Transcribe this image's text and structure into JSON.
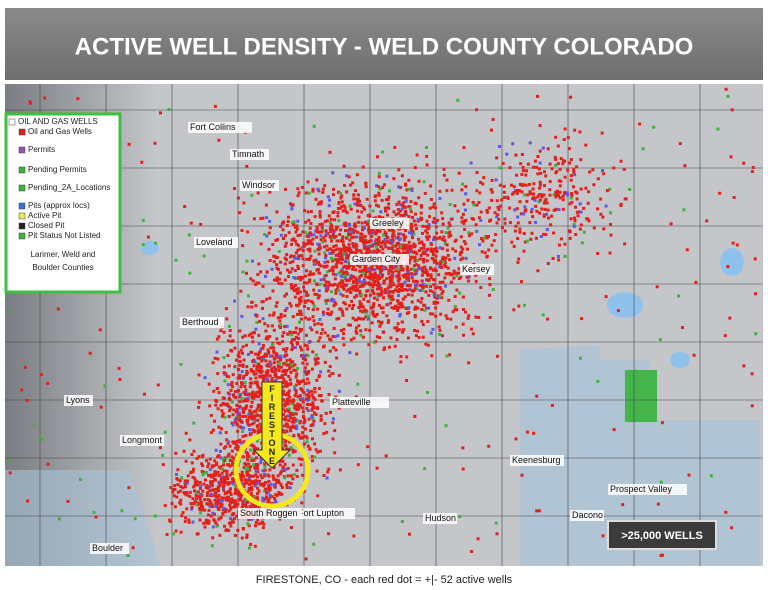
{
  "header": {
    "title": "ACTIVE WELL DENSITY - WELD COUNTY COLORADO"
  },
  "legend": {
    "items": [
      "OIL AND GAS WELLS",
      "Oil and Gas Wells",
      "Permits",
      "Pending Permits",
      "Pending_2A_Locations",
      "Pits (approx locs)",
      "Active Pit",
      "Closed Pit",
      "Pit Status Not Listed"
    ],
    "region": [
      "Larimer, Weld and",
      "Boulder Counties"
    ]
  },
  "map": {
    "labels": [
      "Fort Collins",
      "Timnath",
      "Windsor",
      "Greeley",
      "Garden City",
      "Loveland",
      "Berthoud",
      "Platteville",
      "Longmont",
      "Lyons",
      "Hudson",
      "Keenesburg",
      "Fort Lupton",
      "Boulder",
      "Dacono",
      "Prospect Valley",
      "South Roggen",
      "Kersey"
    ],
    "marker": "FIRESTONE",
    "badge": ">25,000 WELLS"
  },
  "caption": "FIRESTONE, CO - each red dot = +|- 52 active wells"
}
